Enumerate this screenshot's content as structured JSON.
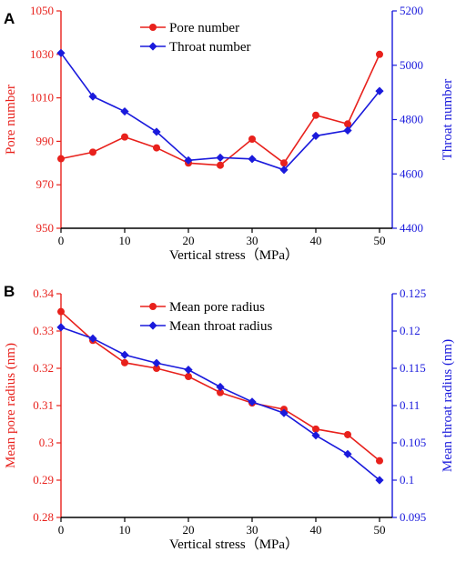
{
  "chart_data": [
    {
      "type": "line",
      "panel_label": "A",
      "xlabel": "Vertical stress（MPa）",
      "x": [
        0,
        5,
        10,
        15,
        20,
        25,
        30,
        35,
        40,
        45,
        50
      ],
      "xlim": [
        0,
        52
      ],
      "xticks": [
        "0",
        "10",
        "20",
        "30",
        "40",
        "50"
      ],
      "xtick_values": [
        0,
        10,
        20,
        30,
        40,
        50
      ],
      "left_axis": {
        "label": "Pore number",
        "color": "#e8211c",
        "ylim": [
          950,
          1050
        ],
        "ticks": [
          "950",
          "970",
          "990",
          "1010",
          "1030",
          "1050"
        ],
        "tick_values": [
          950,
          970,
          990,
          1010,
          1030,
          1050
        ]
      },
      "right_axis": {
        "label": "Throat number",
        "color": "#1a1adc",
        "ylim": [
          4400,
          5200
        ],
        "ticks": [
          "4400",
          "4600",
          "4800",
          "5000",
          "5200"
        ],
        "tick_values": [
          4400,
          4600,
          4800,
          5000,
          5200
        ]
      },
      "series": [
        {
          "name": "Pore number",
          "axis": "left",
          "color": "#e8211c",
          "marker": "circle",
          "values": [
            982,
            985,
            992,
            987,
            980,
            979,
            991,
            980,
            1002,
            998,
            1030
          ]
        },
        {
          "name": "Throat number",
          "axis": "right",
          "color": "#1a1adc",
          "marker": "diamond",
          "values": [
            5045,
            4885,
            4830,
            4755,
            4650,
            4660,
            4655,
            4615,
            4740,
            4760,
            4905
          ]
        }
      ],
      "legend": "top-center",
      "grid": false
    },
    {
      "type": "line",
      "panel_label": "B",
      "xlabel": "Vertical stress（MPa）",
      "x": [
        0,
        5,
        10,
        15,
        20,
        25,
        30,
        35,
        40,
        45,
        50
      ],
      "xlim": [
        0,
        52
      ],
      "xticks": [
        "0",
        "10",
        "20",
        "30",
        "40",
        "50"
      ],
      "xtick_values": [
        0,
        10,
        20,
        30,
        40,
        50
      ],
      "left_axis": {
        "label": "Mean pore radius (nm)",
        "color": "#e8211c",
        "ylim": [
          0.28,
          0.34
        ],
        "ticks": [
          "0.28",
          "0.29",
          "0.3",
          "0.31",
          "0.32",
          "0.33",
          "0.34"
        ],
        "tick_values": [
          0.28,
          0.29,
          0.3,
          0.31,
          0.32,
          0.33,
          0.34
        ]
      },
      "right_axis": {
        "label": "Mean throat radius (nm)",
        "color": "#1a1adc",
        "ylim": [
          0.095,
          0.125
        ],
        "ticks": [
          "0.095",
          "0.1",
          "0.105",
          "0.11",
          "0.115",
          "0.12",
          "0.125"
        ],
        "tick_values": [
          0.095,
          0.1,
          0.105,
          0.11,
          0.115,
          0.12,
          0.125
        ]
      },
      "series": [
        {
          "name": "Mean pore radius",
          "axis": "left",
          "color": "#e8211c",
          "marker": "circle",
          "values": [
            0.3352,
            0.3275,
            0.3215,
            0.32,
            0.3178,
            0.3135,
            0.3107,
            0.309,
            0.3037,
            0.3022,
            0.2952
          ]
        },
        {
          "name": "Mean throat radius",
          "axis": "right",
          "color": "#1a1adc",
          "marker": "diamond",
          "values": [
            0.1205,
            0.119,
            0.1168,
            0.1157,
            0.1148,
            0.1125,
            0.1105,
            0.109,
            0.106,
            0.1035,
            0.1
          ]
        }
      ],
      "legend": "top-center",
      "grid": false
    }
  ]
}
